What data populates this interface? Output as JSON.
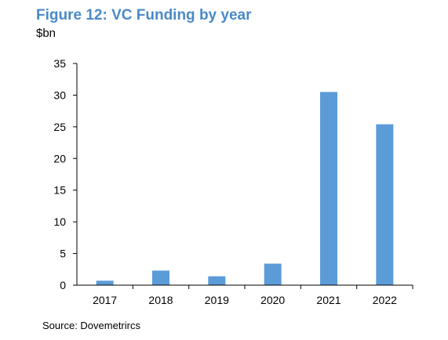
{
  "figure": {
    "title": "Figure 12: VC Funding by year",
    "subtitle": "$bn",
    "source": "Source: Dovemetrircs"
  },
  "chart_data": {
    "type": "bar",
    "title": "Figure 12: VC Funding by year",
    "ylabel": "$bn",
    "xlabel": "",
    "categories": [
      "2017",
      "2018",
      "2019",
      "2020",
      "2021",
      "2022"
    ],
    "values": [
      0.7,
      2.3,
      1.4,
      3.4,
      30.5,
      25.4
    ],
    "ylim": [
      0,
      35
    ],
    "yticks": [
      0,
      5,
      10,
      15,
      20,
      25,
      30,
      35
    ],
    "grid": false,
    "legend": "none",
    "colors": {
      "bar": "#5b9bd8",
      "axis": "#000000"
    }
  }
}
